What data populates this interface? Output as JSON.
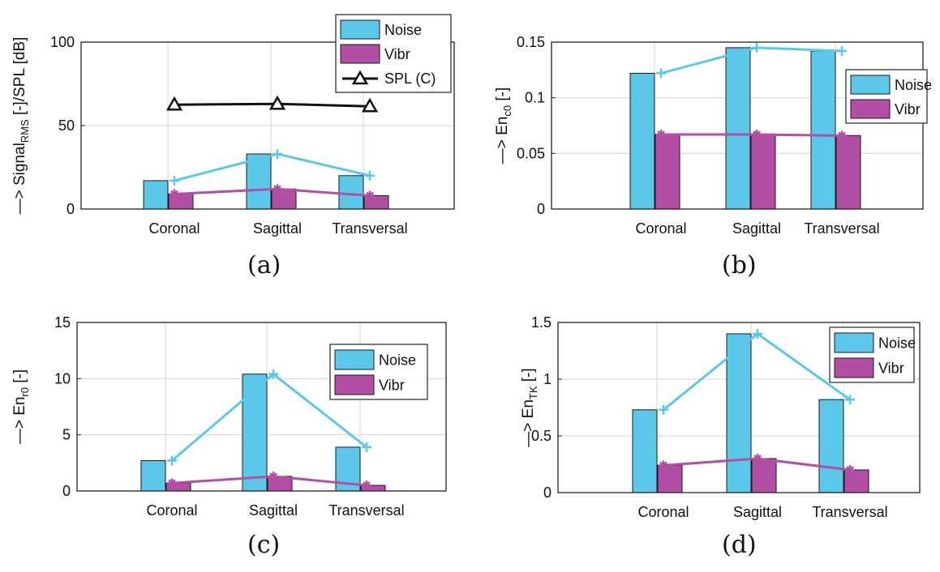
{
  "colors": {
    "noise": "#5bc8ea",
    "vibr": "#b24fa4",
    "spl": "#111111",
    "grid": "#d6d6de",
    "axis": "#222222"
  },
  "chart_data": [
    {
      "id": "a",
      "panel_label": "(a)",
      "type": "bar",
      "categories": [
        "Coronal",
        "Sagittal",
        "Transversal"
      ],
      "series": [
        {
          "name": "Noise",
          "values": [
            17,
            33,
            20
          ]
        },
        {
          "name": "Vibr",
          "values": [
            9,
            12,
            8
          ]
        },
        {
          "name": "SPL (C)",
          "values": [
            62.5,
            63,
            61.5
          ],
          "render": "line",
          "marker": "triangle"
        }
      ],
      "ylabel": "—> Signal_RMS [-]/SPL [dB]",
      "ylabel_parts": {
        "prefix": "—> Signal",
        "sub": "RMS",
        "suffix": " [-]/SPL [dB]"
      },
      "ylim": [
        0,
        100
      ],
      "yticks": [
        "0",
        "50",
        "100"
      ],
      "ytick_values": [
        0,
        50,
        100
      ],
      "legend": "top-right",
      "grid": true
    },
    {
      "id": "b",
      "panel_label": "(b)",
      "type": "bar",
      "categories": [
        "Coronal",
        "Sagittal",
        "Transversal"
      ],
      "series": [
        {
          "name": "Noise",
          "values": [
            0.122,
            0.145,
            0.142
          ]
        },
        {
          "name": "Vibr",
          "values": [
            0.067,
            0.067,
            0.066
          ]
        }
      ],
      "ylabel": "—> En_c0 [-]",
      "ylabel_parts": {
        "prefix": "—> En",
        "sub": "c0",
        "suffix": " [-]"
      },
      "ylim": [
        0,
        0.15
      ],
      "yticks": [
        "0",
        "0.05",
        "0.1",
        "0.15"
      ],
      "ytick_values": [
        0,
        0.05,
        0.1,
        0.15
      ],
      "legend": "top-right",
      "grid": true
    },
    {
      "id": "c",
      "panel_label": "(c)",
      "type": "bar",
      "categories": [
        "Coronal",
        "Sagittal",
        "Transversal"
      ],
      "series": [
        {
          "name": "Noise",
          "values": [
            2.7,
            10.4,
            3.9
          ]
        },
        {
          "name": "Vibr",
          "values": [
            0.7,
            1.3,
            0.5
          ]
        }
      ],
      "ylabel": "—> En_r0 [-]",
      "ylabel_parts": {
        "prefix": "—> En",
        "sub": "r0",
        "suffix": " [-]"
      },
      "ylim": [
        0,
        15
      ],
      "yticks": [
        "0",
        "5",
        "10",
        "15"
      ],
      "ytick_values": [
        0,
        5,
        10,
        15
      ],
      "legend": "top-right",
      "grid": true
    },
    {
      "id": "d",
      "panel_label": "(d)",
      "type": "bar",
      "categories": [
        "Coronal",
        "Sagittal",
        "Transversal"
      ],
      "series": [
        {
          "name": "Noise",
          "values": [
            0.73,
            1.4,
            0.82
          ]
        },
        {
          "name": "Vibr",
          "values": [
            0.24,
            0.3,
            0.2
          ]
        }
      ],
      "ylabel": "—> En_TK [-]",
      "ylabel_parts": {
        "prefix": "—> En",
        "sub": "TK",
        "suffix": " [-]"
      },
      "ylim": [
        0,
        1.5
      ],
      "yticks": [
        "0",
        "0.5",
        "1",
        "1.5"
      ],
      "ytick_values": [
        0,
        0.5,
        1,
        1.5
      ],
      "legend": "top-right",
      "grid": true
    }
  ]
}
